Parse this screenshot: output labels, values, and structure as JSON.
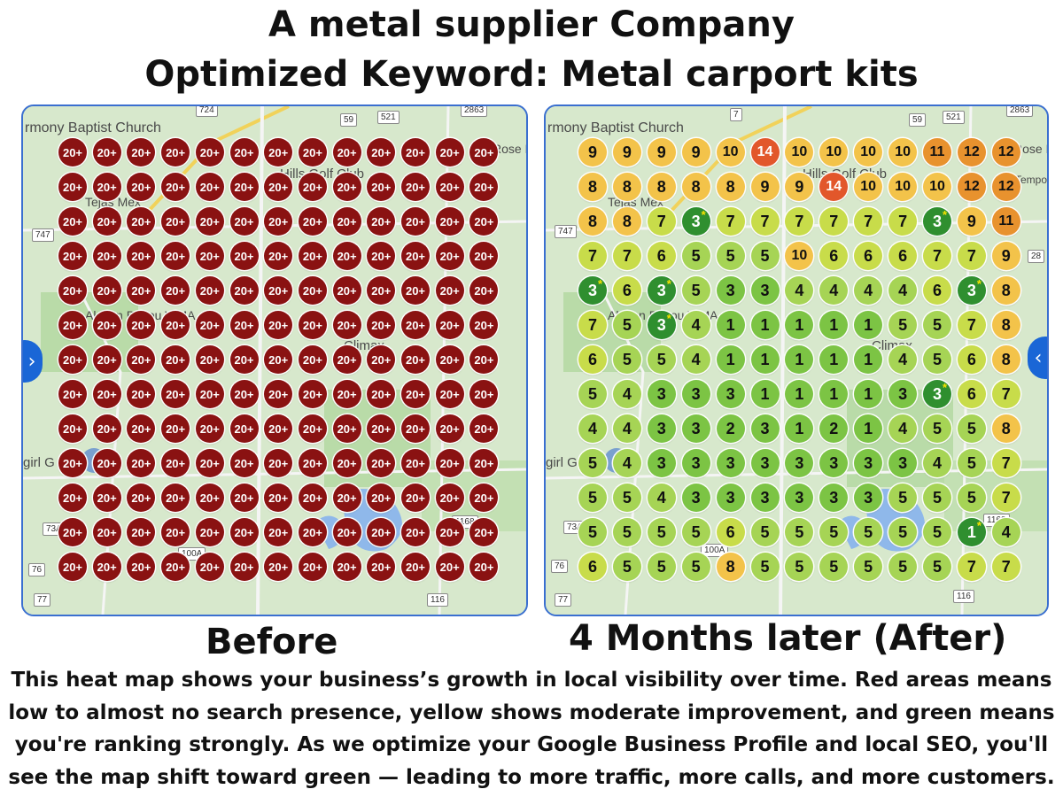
{
  "header": {
    "title_line1": "A metal supplier Company",
    "title_line2": "Optimized Keyword: Metal carport kits"
  },
  "colors": {
    "red": "#8a1212",
    "orange_red": "#e2572b",
    "orange": "#e8922e",
    "yellow": "#f3c34a",
    "yellow_green": "#c8dc4a",
    "light_green": "#a6d455",
    "green": "#7cc444",
    "dark_green": "#2f8f2f",
    "map_blue": "#3a6fd0"
  },
  "map_labels": {
    "church_before": "rmony Baptist Church",
    "church_after": "rmony Baptist Church",
    "golf": "Hills Golf Club",
    "tejas": "Tejas Mex",
    "wma": "Alazan Bayou WMA",
    "climax": "Climax",
    "girl": "girl G",
    "rose_dog": "Rose Dog",
    "tempo": "Tempo"
  },
  "road_labels": {
    "r521": "521",
    "r59": "59",
    "r2863": "2863",
    "r724": "724",
    "r7": "7",
    "r747": "747",
    "r76": "76",
    "r77": "77",
    "r116": "116",
    "r1168": "1168",
    "r100a": "100A",
    "r73a": "73A",
    "r28": "28"
  },
  "before": {
    "caption": "Before",
    "grid": [
      [
        "20+",
        "20+",
        "20+",
        "20+",
        "20+",
        "20+",
        "20+",
        "20+",
        "20+",
        "20+",
        "20+",
        "20+",
        "20+"
      ],
      [
        "20+",
        "20+",
        "20+",
        "20+",
        "20+",
        "20+",
        "20+",
        "20+",
        "20+",
        "20+",
        "20+",
        "20+",
        "20+"
      ],
      [
        "20+",
        "20+",
        "20+",
        "20+",
        "20+",
        "20+",
        "20+",
        "20+",
        "20+",
        "20+",
        "20+",
        "20+",
        "20+"
      ],
      [
        "20+",
        "20+",
        "20+",
        "20+",
        "20+",
        "20+",
        "20+",
        "20+",
        "20+",
        "20+",
        "20+",
        "20+",
        "20+"
      ],
      [
        "20+",
        "20+",
        "20+",
        "20+",
        "20+",
        "20+",
        "20+",
        "20+",
        "20+",
        "20+",
        "20+",
        "20+",
        "20+"
      ],
      [
        "20+",
        "20+",
        "20+",
        "20+",
        "20+",
        "20+",
        "20+",
        "20+",
        "20+",
        "20+",
        "20+",
        "20+",
        "20+"
      ],
      [
        "20+",
        "20+",
        "20+",
        "20+",
        "20+",
        "20+",
        "20+",
        "20+",
        "20+",
        "20+",
        "20+",
        "20+",
        "20+"
      ],
      [
        "20+",
        "20+",
        "20+",
        "20+",
        "20+",
        "20+",
        "20+",
        "20+",
        "20+",
        "20+",
        "20+",
        "20+",
        "20+"
      ],
      [
        "20+",
        "20+",
        "20+",
        "20+",
        "20+",
        "20+",
        "20+",
        "20+",
        "20+",
        "20+",
        "20+",
        "20+",
        "20+"
      ],
      [
        "20+",
        "20+",
        "20+",
        "20+",
        "20+",
        "20+",
        "20+",
        "20+",
        "20+",
        "20+",
        "20+",
        "20+",
        "20+"
      ],
      [
        "20+",
        "20+",
        "20+",
        "20+",
        "20+",
        "20+",
        "20+",
        "20+",
        "20+",
        "20+",
        "20+",
        "20+",
        "20+"
      ],
      [
        "20+",
        "20+",
        "20+",
        "20+",
        "20+",
        "20+",
        "20+",
        "20+",
        "20+",
        "20+",
        "20+",
        "20+",
        "20+"
      ],
      [
        "20+",
        "20+",
        "20+",
        "20+",
        "20+",
        "20+",
        "20+",
        "20+",
        "20+",
        "20+",
        "20+",
        "20+",
        "20+"
      ]
    ]
  },
  "after": {
    "caption": "4 Months later (After)",
    "grid": [
      [
        "9",
        "9",
        "9",
        "9",
        "10",
        "14",
        "10",
        "10",
        "10",
        "10",
        "11",
        "12",
        "12"
      ],
      [
        "8",
        "8",
        "8",
        "8",
        "8",
        "9",
        "9",
        "14",
        "10",
        "10",
        "10",
        "12",
        "12"
      ],
      [
        "8",
        "8",
        "7",
        "3",
        "7",
        "7",
        "7",
        "7",
        "7",
        "7",
        "3",
        "9",
        "11"
      ],
      [
        "7",
        "7",
        "6",
        "5",
        "5",
        "5",
        "10",
        "6",
        "6",
        "6",
        "7",
        "7",
        "9"
      ],
      [
        "3",
        "6",
        "3",
        "5",
        "3",
        "3",
        "4",
        "4",
        "4",
        "4",
        "6",
        "3",
        "8"
      ],
      [
        "7",
        "5",
        "3",
        "4",
        "1",
        "1",
        "1",
        "1",
        "1",
        "5",
        "5",
        "7",
        "8"
      ],
      [
        "6",
        "5",
        "5",
        "4",
        "1",
        "1",
        "1",
        "1",
        "1",
        "4",
        "5",
        "6",
        "8"
      ],
      [
        "5",
        "4",
        "3",
        "3",
        "3",
        "1",
        "1",
        "1",
        "1",
        "3",
        "3",
        "6",
        "7"
      ],
      [
        "4",
        "4",
        "3",
        "3",
        "2",
        "3",
        "1",
        "2",
        "1",
        "4",
        "5",
        "5",
        "8"
      ],
      [
        "5",
        "4",
        "3",
        "3",
        "3",
        "3",
        "3",
        "3",
        "3",
        "3",
        "4",
        "5",
        "7"
      ],
      [
        "5",
        "5",
        "4",
        "3",
        "3",
        "3",
        "3",
        "3",
        "3",
        "5",
        "5",
        "5",
        "7"
      ],
      [
        "5",
        "5",
        "5",
        "5",
        "6",
        "5",
        "5",
        "5",
        "5",
        "5",
        "5",
        "1",
        "4"
      ],
      [
        "6",
        "5",
        "5",
        "5",
        "8",
        "5",
        "5",
        "5",
        "5",
        "5",
        "5",
        "7",
        "7"
      ]
    ],
    "top_rank_cells": [
      "2-3",
      "2-10",
      "4-0",
      "4-2",
      "4-11",
      "5-2",
      "7-10",
      "11-11"
    ]
  },
  "description": "This heat map shows your business’s growth in local visibility over time. Red areas means low to almost no search presence, yellow shows moderate improvement, and green means you're ranking strongly. As we optimize your Google Business Profile and local SEO, you'll see the map shift toward green — leading to more traffic, more calls, and more customers."
}
